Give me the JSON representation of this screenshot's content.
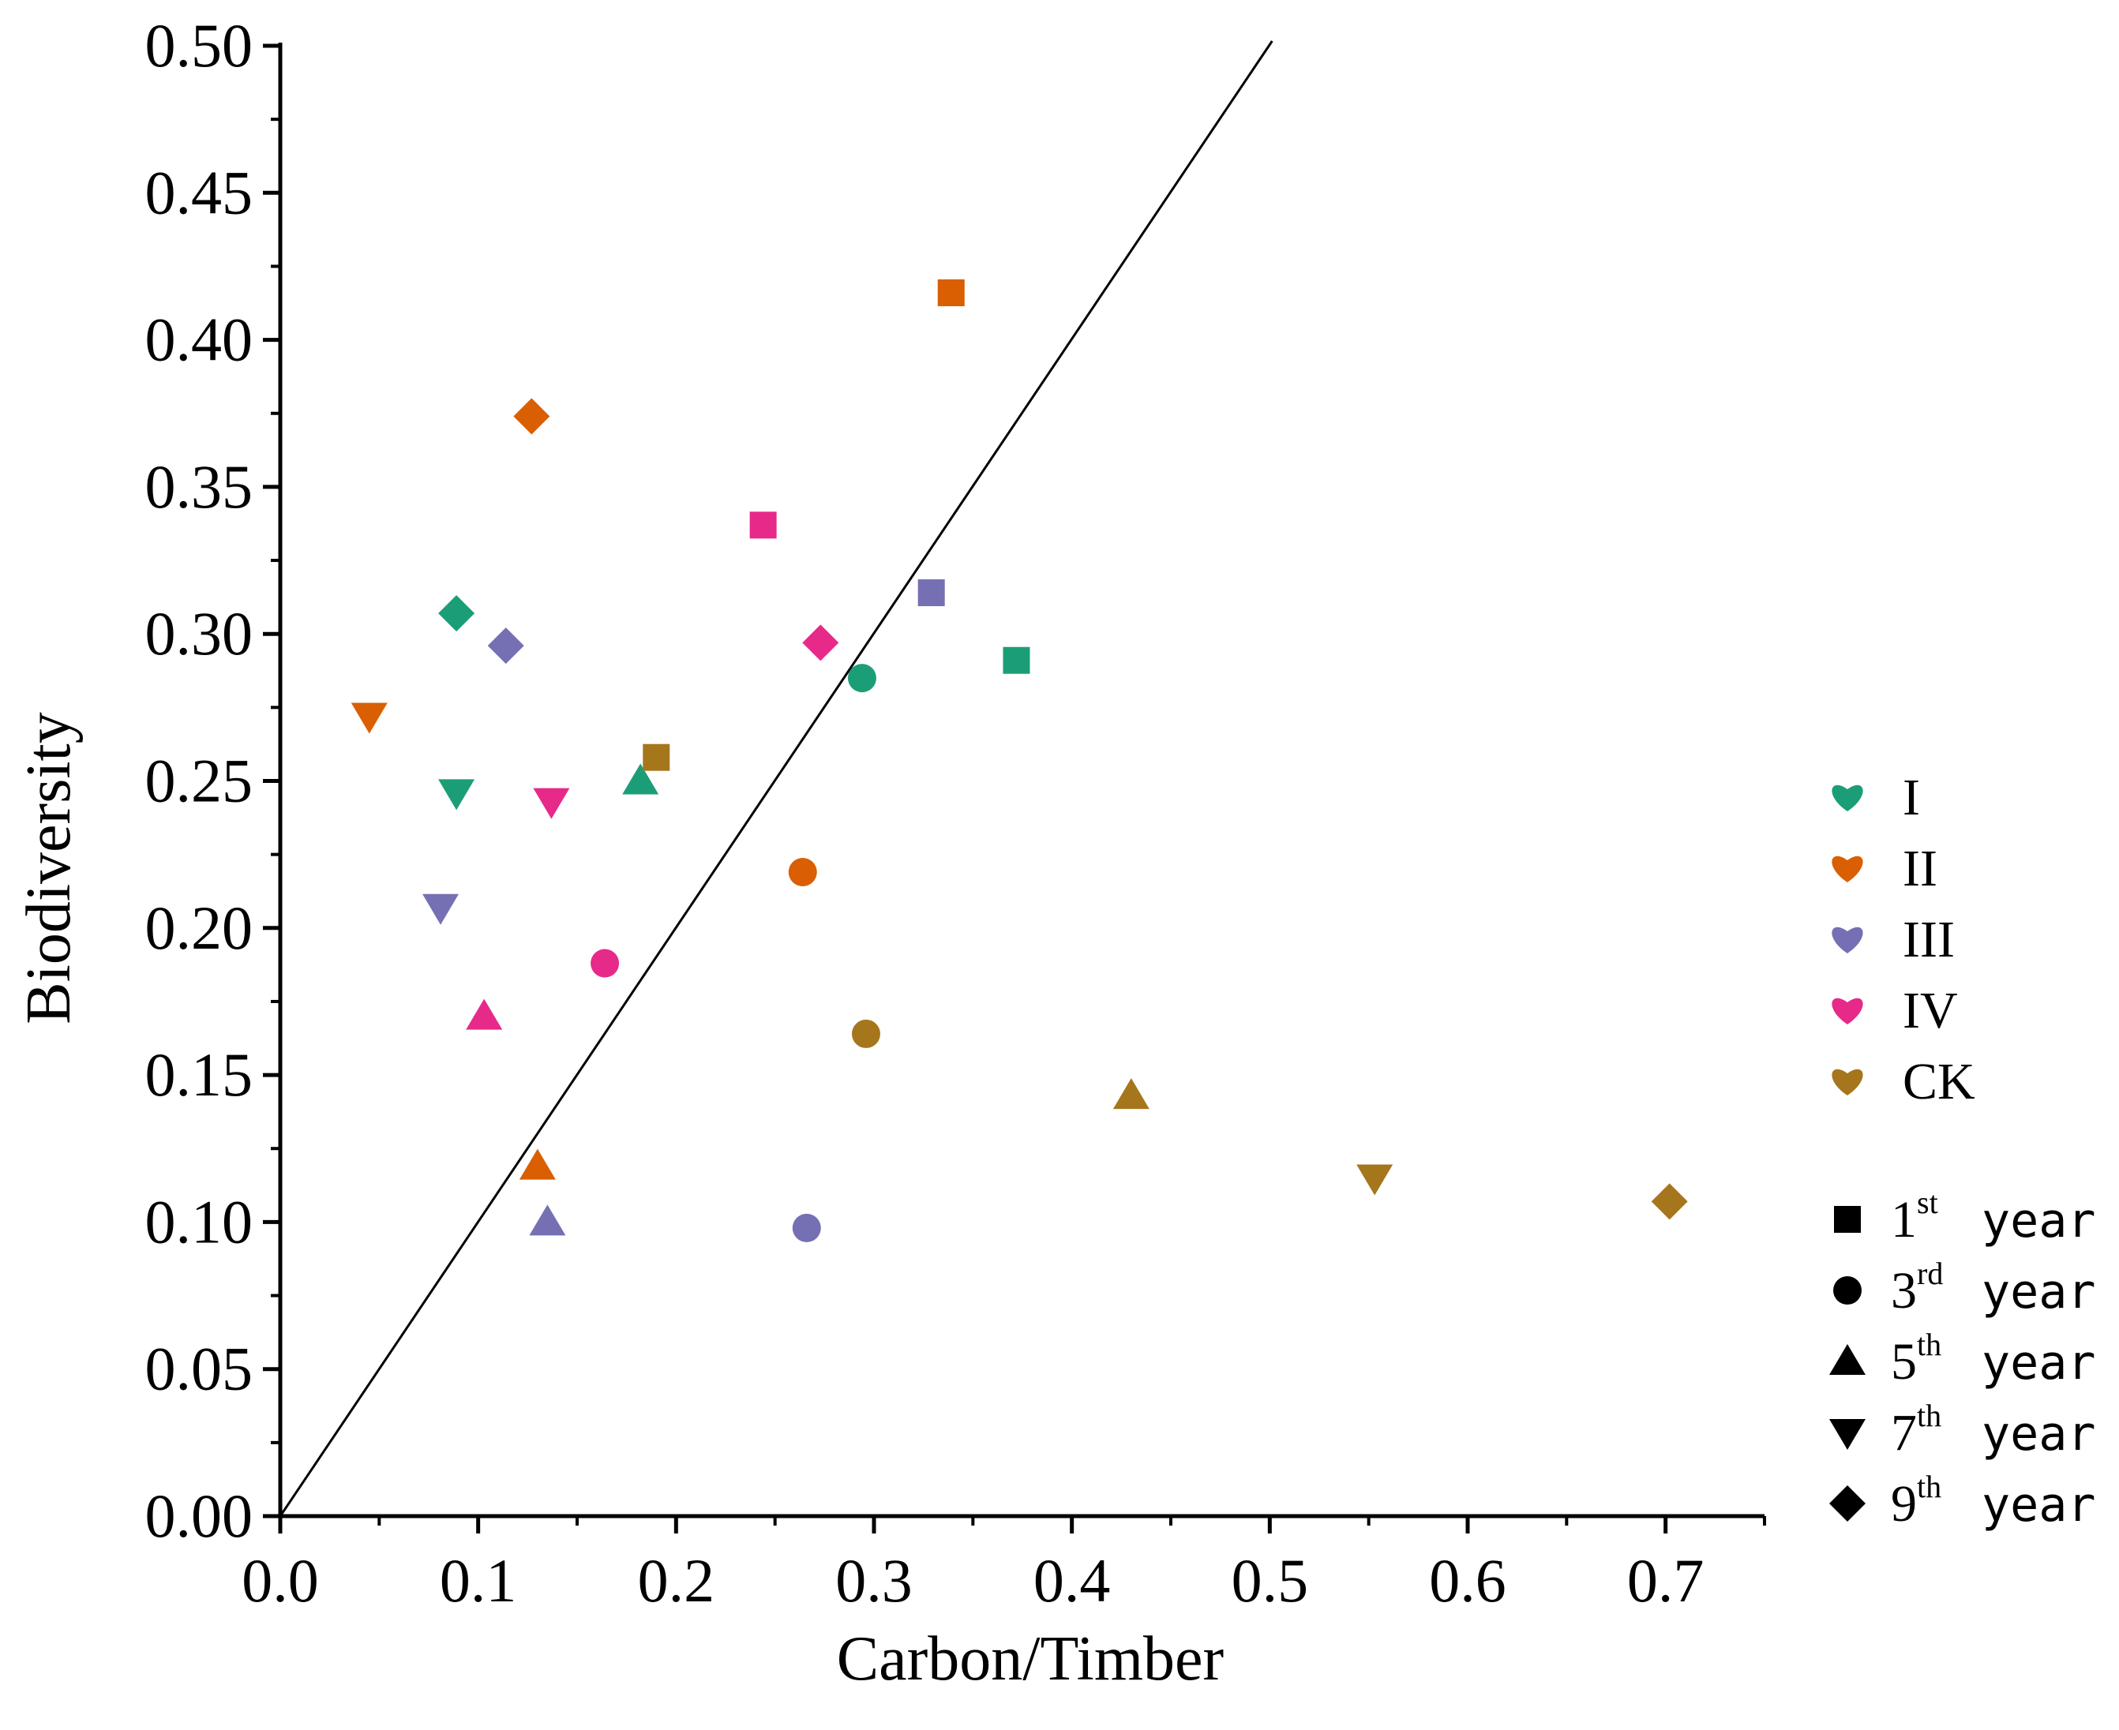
{
  "chart_data": {
    "type": "scatter",
    "title": "",
    "xlabel": "Carbon/Timber",
    "ylabel": "Biodiversity",
    "xlim": [
      0,
      0.75
    ],
    "ylim": [
      0,
      0.5
    ],
    "xticks": [
      "0.0",
      "0.1",
      "0.2",
      "0.3",
      "0.4",
      "0.5",
      "0.6",
      "0.7"
    ],
    "yticks": [
      "0.00",
      "0.05",
      "0.10",
      "0.15",
      "0.20",
      "0.25",
      "0.30",
      "0.35",
      "0.40",
      "0.45",
      "0.50"
    ],
    "reference_line": {
      "type": "y=x",
      "label": ""
    },
    "legend_position": "right",
    "treatments": [
      {
        "name": "I",
        "color": "#1b9e77"
      },
      {
        "name": "II",
        "color": "#d95f02"
      },
      {
        "name": "III",
        "color": "#7570b3"
      },
      {
        "name": "IV",
        "color": "#e7298a"
      },
      {
        "name": "CK",
        "color": "#a6761d"
      }
    ],
    "years": [
      {
        "num": "1",
        "sup": "st",
        "word": "year",
        "marker": "square"
      },
      {
        "num": "3",
        "sup": "rd",
        "word": "year",
        "marker": "circle"
      },
      {
        "num": "5",
        "sup": "th",
        "word": "year",
        "marker": "triangle-up"
      },
      {
        "num": "7",
        "sup": "th",
        "word": "year",
        "marker": "triangle-down"
      },
      {
        "num": "9",
        "sup": "th",
        "word": "year",
        "marker": "diamond"
      }
    ],
    "points": [
      {
        "treatment": "I",
        "year": "1",
        "x": 0.372,
        "y": 0.291
      },
      {
        "treatment": "I",
        "year": "3",
        "x": 0.294,
        "y": 0.285
      },
      {
        "treatment": "I",
        "year": "5",
        "x": 0.182,
        "y": 0.25
      },
      {
        "treatment": "I",
        "year": "7",
        "x": 0.089,
        "y": 0.246
      },
      {
        "treatment": "I",
        "year": "9",
        "x": 0.089,
        "y": 0.307
      },
      {
        "treatment": "II",
        "year": "1",
        "x": 0.339,
        "y": 0.416
      },
      {
        "treatment": "II",
        "year": "3",
        "x": 0.264,
        "y": 0.219
      },
      {
        "treatment": "II",
        "year": "5",
        "x": 0.13,
        "y": 0.119
      },
      {
        "treatment": "II",
        "year": "7",
        "x": 0.045,
        "y": 0.272
      },
      {
        "treatment": "II",
        "year": "9",
        "x": 0.127,
        "y": 0.374
      },
      {
        "treatment": "III",
        "year": "1",
        "x": 0.329,
        "y": 0.314
      },
      {
        "treatment": "III",
        "year": "3",
        "x": 0.266,
        "y": 0.098
      },
      {
        "treatment": "III",
        "year": "5",
        "x": 0.135,
        "y": 0.1
      },
      {
        "treatment": "III",
        "year": "7",
        "x": 0.081,
        "y": 0.207
      },
      {
        "treatment": "III",
        "year": "9",
        "x": 0.114,
        "y": 0.296
      },
      {
        "treatment": "IV",
        "year": "1",
        "x": 0.244,
        "y": 0.337
      },
      {
        "treatment": "IV",
        "year": "3",
        "x": 0.164,
        "y": 0.188
      },
      {
        "treatment": "IV",
        "year": "5",
        "x": 0.103,
        "y": 0.17
      },
      {
        "treatment": "IV",
        "year": "7",
        "x": 0.137,
        "y": 0.243
      },
      {
        "treatment": "IV",
        "year": "9",
        "x": 0.273,
        "y": 0.297
      },
      {
        "treatment": "CK",
        "year": "1",
        "x": 0.19,
        "y": 0.258
      },
      {
        "treatment": "CK",
        "year": "3",
        "x": 0.296,
        "y": 0.164
      },
      {
        "treatment": "CK",
        "year": "5",
        "x": 0.43,
        "y": 0.143
      },
      {
        "treatment": "CK",
        "year": "7",
        "x": 0.553,
        "y": 0.115
      },
      {
        "treatment": "CK",
        "year": "9",
        "x": 0.702,
        "y": 0.107
      }
    ]
  }
}
